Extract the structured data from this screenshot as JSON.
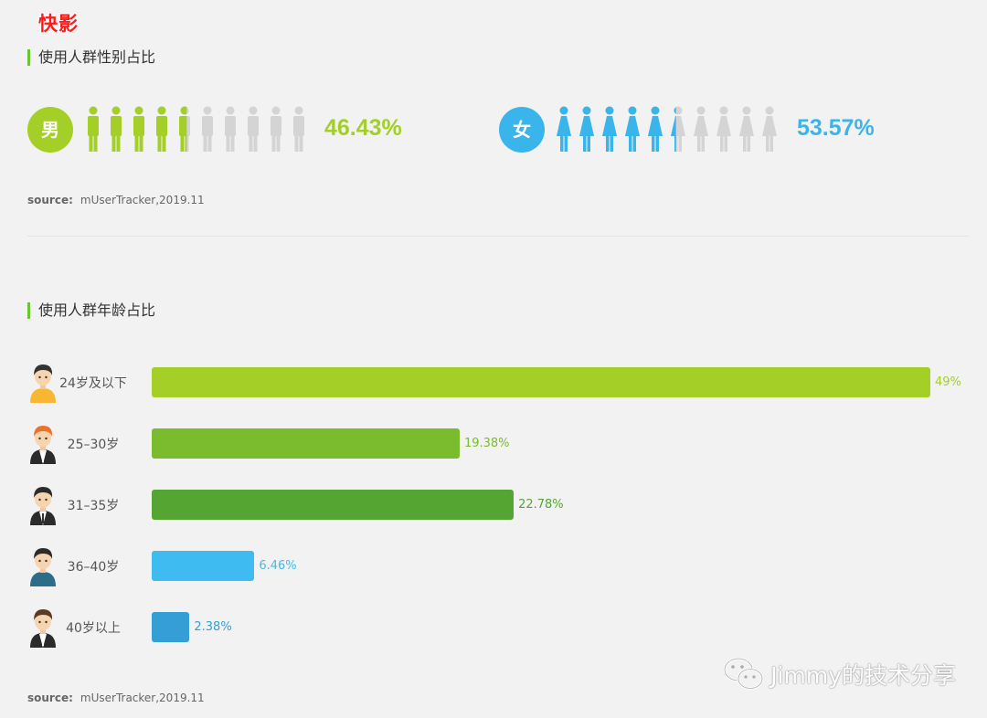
{
  "brand": "快影",
  "gender_section": {
    "title": "使用人群性别占比",
    "male": {
      "label": "男",
      "value": 46.43,
      "pct_text": "46.43%",
      "color": "#a3cf27"
    },
    "female": {
      "label": "女",
      "value": 53.57,
      "pct_text": "53.57%",
      "color": "#3ab5ec"
    },
    "icon_count": 10,
    "inactive_color": "#d4d4d4",
    "source_label": "source:",
    "source_value": "mUserTracker,2019.11"
  },
  "age_section": {
    "title": "使用人群年龄占比",
    "source_label": "source:",
    "source_value": "mUserTracker,2019.11"
  },
  "chart_data": {
    "type": "bar",
    "orientation": "horizontal",
    "categories": [
      "24岁及以下",
      "25–30岁",
      "31–35岁",
      "36–40岁",
      "40岁以上"
    ],
    "values": [
      49,
      19.38,
      22.78,
      6.46,
      2.38
    ],
    "value_labels": [
      "49%",
      "19.38%",
      "22.78%",
      "6.46%",
      "2.38%"
    ],
    "colors": [
      "#a3cf27",
      "#7bbb2e",
      "#55a533",
      "#3ebcf1",
      "#349ed5"
    ],
    "xlim": [
      0,
      49
    ]
  },
  "watermark": "Jimmy的技术分享"
}
